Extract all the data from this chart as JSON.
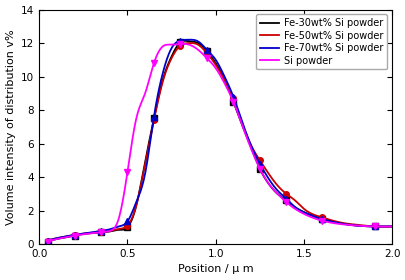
{
  "title": "",
  "xlabel": "Position / μ m",
  "ylabel": "Volume intensity of distribution v%",
  "xlim": [
    0.0,
    2.0
  ],
  "ylim": [
    0,
    14
  ],
  "yticks": [
    0,
    2,
    4,
    6,
    8,
    10,
    12,
    14
  ],
  "xticks": [
    0.0,
    0.5,
    1.0,
    1.5,
    2.0
  ],
  "series": [
    {
      "label": "Fe-30wt% Si powder",
      "color": "#000000",
      "marker": "s",
      "x": [
        0.05,
        0.1,
        0.15,
        0.2,
        0.25,
        0.3,
        0.35,
        0.4,
        0.45,
        0.5,
        0.55,
        0.6,
        0.65,
        0.7,
        0.75,
        0.8,
        0.85,
        0.9,
        0.95,
        1.0,
        1.05,
        1.1,
        1.15,
        1.2,
        1.25,
        1.3,
        1.35,
        1.4,
        1.45,
        1.5,
        1.6,
        1.7,
        1.8,
        1.9,
        2.0
      ],
      "y": [
        0.15,
        0.3,
        0.4,
        0.5,
        0.6,
        0.65,
        0.7,
        0.75,
        0.85,
        1.0,
        2.3,
        4.9,
        7.5,
        9.8,
        11.2,
        12.05,
        12.1,
        12.0,
        11.5,
        10.8,
        9.8,
        8.5,
        7.1,
        5.8,
        4.5,
        3.6,
        3.0,
        2.6,
        2.2,
        1.9,
        1.5,
        1.25,
        1.1,
        1.05,
        1.05
      ]
    },
    {
      "label": "Fe-50wt% Si powder",
      "color": "#cc0000",
      "marker": "o",
      "x": [
        0.05,
        0.1,
        0.15,
        0.2,
        0.25,
        0.3,
        0.35,
        0.4,
        0.45,
        0.5,
        0.55,
        0.6,
        0.65,
        0.7,
        0.75,
        0.8,
        0.85,
        0.9,
        0.95,
        1.0,
        1.05,
        1.1,
        1.15,
        1.2,
        1.25,
        1.3,
        1.35,
        1.4,
        1.45,
        1.5,
        1.6,
        1.7,
        1.8,
        1.9,
        2.0
      ],
      "y": [
        0.2,
        0.35,
        0.45,
        0.55,
        0.62,
        0.68,
        0.72,
        0.78,
        0.9,
        1.1,
        2.3,
        4.8,
        7.4,
        9.7,
        11.1,
        11.85,
        12.0,
        11.9,
        11.4,
        10.7,
        9.8,
        8.7,
        7.2,
        5.9,
        5.0,
        4.2,
        3.5,
        3.0,
        2.6,
        2.1,
        1.6,
        1.3,
        1.15,
        1.05,
        1.05
      ]
    },
    {
      "label": "Fe-70wt% Si powder",
      "color": "#0000cc",
      "marker": "^",
      "x": [
        0.05,
        0.1,
        0.15,
        0.2,
        0.25,
        0.3,
        0.35,
        0.4,
        0.45,
        0.5,
        0.55,
        0.6,
        0.65,
        0.7,
        0.75,
        0.8,
        0.85,
        0.9,
        0.95,
        1.0,
        1.05,
        1.1,
        1.15,
        1.2,
        1.25,
        1.3,
        1.35,
        1.4,
        1.45,
        1.5,
        1.6,
        1.7,
        1.8,
        1.9,
        2.0
      ],
      "y": [
        0.2,
        0.35,
        0.45,
        0.55,
        0.62,
        0.7,
        0.78,
        0.88,
        1.05,
        1.35,
        2.5,
        4.2,
        7.6,
        10.2,
        11.7,
        12.15,
        12.2,
        12.1,
        11.6,
        11.0,
        10.0,
        8.8,
        7.3,
        5.9,
        4.8,
        3.9,
        3.2,
        2.7,
        2.2,
        1.9,
        1.5,
        1.25,
        1.1,
        1.05,
        1.05
      ]
    },
    {
      "label": "Si powder",
      "color": "#ff00ff",
      "marker": "v",
      "x": [
        0.05,
        0.1,
        0.15,
        0.2,
        0.25,
        0.3,
        0.35,
        0.4,
        0.45,
        0.5,
        0.55,
        0.6,
        0.65,
        0.7,
        0.75,
        0.8,
        0.85,
        0.9,
        0.95,
        1.0,
        1.05,
        1.1,
        1.15,
        1.2,
        1.25,
        1.3,
        1.35,
        1.4,
        1.45,
        1.5,
        1.6,
        1.7,
        1.8,
        1.9,
        2.0
      ],
      "y": [
        0.15,
        0.3,
        0.4,
        0.5,
        0.58,
        0.65,
        0.7,
        0.78,
        1.5,
        4.3,
        7.5,
        9.0,
        10.8,
        11.8,
        11.9,
        11.95,
        11.9,
        11.6,
        11.1,
        10.5,
        9.6,
        8.5,
        7.1,
        5.7,
        4.5,
        3.6,
        3.0,
        2.5,
        2.1,
        1.8,
        1.4,
        1.2,
        1.1,
        1.05,
        1.05
      ]
    }
  ],
  "marker_size": 4,
  "linewidth": 1.3,
  "legend_fontsize": 7,
  "axis_fontsize": 8,
  "tick_fontsize": 7.5,
  "background_color": "#ffffff"
}
